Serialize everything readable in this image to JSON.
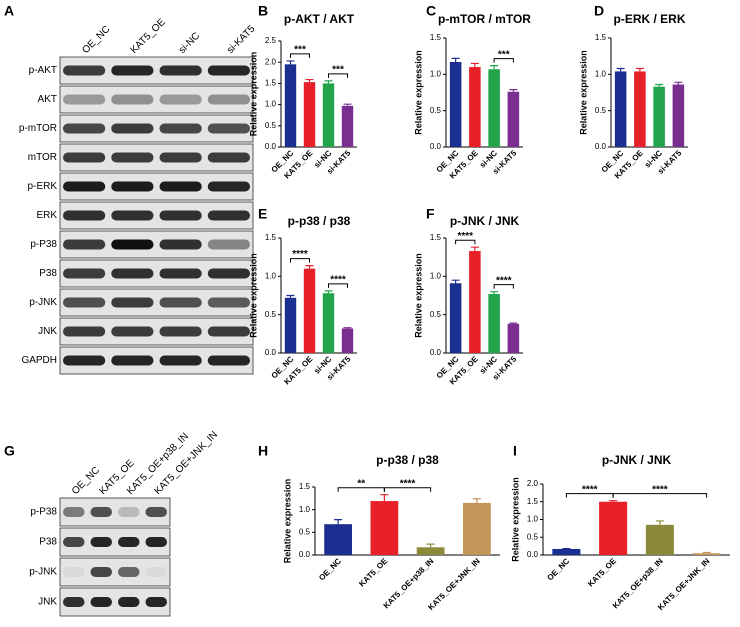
{
  "blots": [
    {
      "panel": "A",
      "lanes": [
        "OE_NC",
        "KAT5_OE",
        "si-NC",
        "si-KAT5"
      ],
      "rows": [
        "p-AKT",
        "AKT",
        "p-mTOR",
        "mTOR",
        "p-ERK",
        "ERK",
        "p-P38",
        "P38",
        "p-JNK",
        "JNK",
        "GAPDH"
      ]
    },
    {
      "panel": "G",
      "lanes": [
        "OE_NC",
        "KAT5_OE",
        "KAT5_OE+p38_IN",
        "KAT5_OE+JNK_IN"
      ],
      "rows": [
        "p-P38",
        "P38",
        "p-JNK",
        "JNK"
      ]
    }
  ],
  "chart_data": [
    {
      "type": "bar",
      "panel": "B",
      "title": "p-AKT / AKT",
      "y_label": "Relative expression",
      "categories": [
        "OE_NC",
        "KAT5_OE",
        "si-NC",
        "si-KAT5"
      ],
      "values": [
        1.95,
        1.53,
        1.5,
        0.97
      ],
      "errors": [
        0.08,
        0.06,
        0.06,
        0.04
      ],
      "colors": [
        "#1a2f8f",
        "#e8202a",
        "#21a44a",
        "#7a2f90"
      ],
      "ylim": [
        0,
        2.5
      ],
      "yticks": [
        {
          "value": 0,
          "label": "0.0"
        },
        0.5,
        {
          "value": 1,
          "label": "1.0"
        },
        1.5,
        {
          "value": 2,
          "label": "2.0"
        },
        2.5
      ],
      "annotations": [
        {
          "label": "***",
          "between": [
            "OE_NC",
            "KAT5_OE"
          ]
        },
        {
          "label": "***",
          "between": [
            "si-NC",
            "si-KAT5"
          ]
        }
      ]
    },
    {
      "type": "bar",
      "panel": "C",
      "title": "p-mTOR / mTOR",
      "y_label": "Relative expression",
      "categories": [
        "OE_NC",
        "KAT5_OE",
        "si-NC",
        "si-KAT5"
      ],
      "values": [
        1.17,
        1.1,
        1.07,
        0.76
      ],
      "errors": [
        0.05,
        0.05,
        0.05,
        0.03
      ],
      "colors": [
        "#1a2f8f",
        "#e8202a",
        "#21a44a",
        "#7a2f90"
      ],
      "ylim": [
        0,
        1.5
      ],
      "yticks": [
        {
          "value": 0,
          "label": "0.0"
        },
        0.5,
        {
          "value": 1,
          "label": "1.0"
        },
        1.5
      ],
      "annotations": [
        {
          "label": "***",
          "between": [
            "si-NC",
            "si-KAT5"
          ]
        }
      ]
    },
    {
      "type": "bar",
      "panel": "D",
      "title": "p-ERK / ERK",
      "y_label": "Relative expression",
      "categories": [
        "OE_NC",
        "KAT5_OE",
        "si-NC",
        "si-KAT5"
      ],
      "values": [
        1.04,
        1.04,
        0.83,
        0.86
      ],
      "errors": [
        0.04,
        0.04,
        0.03,
        0.03
      ],
      "colors": [
        "#1a2f8f",
        "#e8202a",
        "#21a44a",
        "#7a2f90"
      ],
      "ylim": [
        0,
        1.5
      ],
      "yticks": [
        {
          "value": 0,
          "label": "0.0"
        },
        0.5,
        {
          "value": 1,
          "label": "1.0"
        },
        1.5
      ],
      "annotations": []
    },
    {
      "type": "bar",
      "panel": "E",
      "title": "p-p38 / p38",
      "y_label": "Relative expression",
      "categories": [
        "OE_NC",
        "KAT5_OE",
        "si-NC",
        "si-KAT5"
      ],
      "values": [
        0.72,
        1.1,
        0.78,
        0.32
      ],
      "errors": [
        0.03,
        0.04,
        0.03,
        0.01
      ],
      "colors": [
        "#1a2f8f",
        "#e8202a",
        "#21a44a",
        "#7a2f90"
      ],
      "ylim": [
        0,
        1.5
      ],
      "yticks": [
        {
          "value": 0,
          "label": "0.0"
        },
        0.5,
        {
          "value": 1,
          "label": "1.0"
        },
        1.5
      ],
      "annotations": [
        {
          "label": "****",
          "between": [
            "OE_NC",
            "KAT5_OE"
          ]
        },
        {
          "label": "****",
          "between": [
            "si-NC",
            "si-KAT5"
          ]
        }
      ]
    },
    {
      "type": "bar",
      "panel": "F",
      "title": "p-JNK / JNK",
      "y_label": "Relative expression",
      "categories": [
        "OE_NC",
        "KAT5_OE",
        "si-NC",
        "si-KAT5"
      ],
      "values": [
        0.91,
        1.33,
        0.77,
        0.38
      ],
      "errors": [
        0.04,
        0.05,
        0.03,
        0.01
      ],
      "colors": [
        "#1a2f8f",
        "#e8202a",
        "#21a44a",
        "#7a2f90"
      ],
      "ylim": [
        0,
        1.5
      ],
      "yticks": [
        {
          "value": 0,
          "label": "0.0"
        },
        0.5,
        {
          "value": 1,
          "label": "1.0"
        },
        1.5
      ],
      "annotations": [
        {
          "label": "****",
          "between": [
            "OE_NC",
            "KAT5_OE"
          ]
        },
        {
          "label": "****",
          "between": [
            "si-NC",
            "si-KAT5"
          ]
        }
      ]
    },
    {
      "type": "bar",
      "panel": "H",
      "title": "p-p38 / p38",
      "y_label": "Relative expression",
      "categories": [
        "OE_NC",
        "KAT5_OE",
        "KAT5_OE+p38_IN",
        "KAT5_OE+JNK_IN"
      ],
      "values": [
        0.68,
        1.19,
        0.17,
        1.15
      ],
      "errors": [
        0.1,
        0.14,
        0.07,
        0.09
      ],
      "colors": [
        "#1a2f8f",
        "#e8202a",
        "#8b8a3a",
        "#c4965a"
      ],
      "ylim": [
        0,
        1.5
      ],
      "yticks": [
        {
          "value": 0,
          "label": "0.0"
        },
        0.5,
        {
          "value": 1,
          "label": "1.0"
        },
        1.5
      ],
      "annotations": [
        {
          "label": "**",
          "between": [
            "OE_NC",
            "KAT5_OE"
          ]
        },
        {
          "label": "****",
          "between": [
            "KAT5_OE",
            "KAT5_OE+p38_IN"
          ]
        }
      ]
    },
    {
      "type": "bar",
      "panel": "I",
      "title": "p-JNK / JNK",
      "y_label": "Relative expression",
      "categories": [
        "OE_NC",
        "KAT5_OE",
        "KAT5_OE+p38_IN",
        "KAT5_OE+JNK_IN"
      ],
      "values": [
        0.17,
        1.5,
        0.85,
        0.05
      ],
      "errors": [
        0.01,
        0.03,
        0.11,
        0.02
      ],
      "colors": [
        "#1a2f8f",
        "#e8202a",
        "#8b8a3a",
        "#c4965a"
      ],
      "ylim": [
        0,
        2
      ],
      "yticks": [
        {
          "value": 0,
          "label": "0.0"
        },
        0.5,
        {
          "value": 1,
          "label": "1.0"
        },
        1.5,
        {
          "value": 2,
          "label": "2.0"
        }
      ],
      "annotations": [
        {
          "label": "****",
          "between": [
            "OE_NC",
            "KAT5_OE"
          ]
        },
        {
          "label": "****",
          "between": [
            "KAT5_OE",
            "KAT5_OE+JNK_IN"
          ]
        }
      ]
    }
  ]
}
